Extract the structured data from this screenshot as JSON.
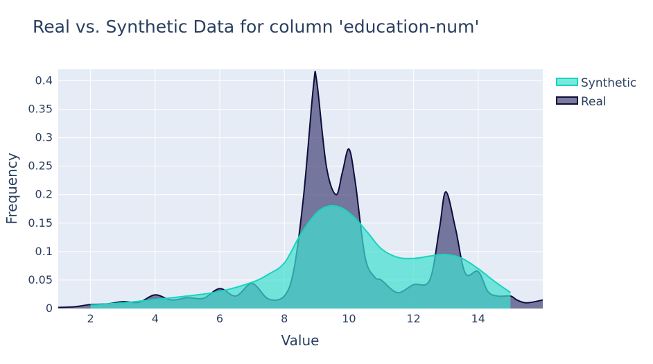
{
  "chart_data": {
    "type": "area",
    "title": "Real vs. Synthetic Data for column 'education-num'",
    "xlabel": "Value",
    "ylabel": "Frequency",
    "xlim": [
      1,
      16
    ],
    "ylim": [
      0,
      0.42
    ],
    "x_ticks": [
      2,
      4,
      6,
      8,
      10,
      12,
      14
    ],
    "y_ticks": [
      0,
      0.05,
      0.1,
      0.15,
      0.2,
      0.25,
      0.3,
      0.35,
      0.4
    ],
    "y_tick_labels": [
      "0",
      "0.05",
      "0.1",
      "0.15",
      "0.2",
      "0.25",
      "0.3",
      "0.35",
      "0.4"
    ],
    "grid": true,
    "legend_position": "top-right",
    "series": [
      {
        "name": "Real",
        "fill_color": "#4f4f7f",
        "line_color": "#0e0e3a",
        "x": [
          1,
          1.5,
          2,
          2.5,
          3,
          3.5,
          4,
          4.5,
          5,
          5.5,
          6,
          6.5,
          7,
          7.5,
          8,
          8.3,
          8.6,
          8.9,
          9,
          9.3,
          9.6,
          9.8,
          10,
          10.2,
          10.5,
          10.8,
          11,
          11.5,
          12,
          12.5,
          12.8,
          13,
          13.3,
          13.6,
          14,
          14.3,
          14.6,
          15,
          15.2,
          15.5,
          16
        ],
        "y": [
          0.002,
          0.003,
          0.007,
          0.008,
          0.012,
          0.011,
          0.024,
          0.015,
          0.019,
          0.018,
          0.035,
          0.022,
          0.044,
          0.017,
          0.022,
          0.07,
          0.2,
          0.39,
          0.4,
          0.25,
          0.2,
          0.24,
          0.28,
          0.22,
          0.09,
          0.055,
          0.05,
          0.028,
          0.042,
          0.05,
          0.14,
          0.205,
          0.14,
          0.062,
          0.065,
          0.03,
          0.022,
          0.022,
          0.015,
          0.01,
          0.015
        ]
      },
      {
        "name": "Synthetic",
        "fill_color": "#40e0d0",
        "line_color": "#19d3c0",
        "x": [
          2,
          3,
          4,
          5,
          6,
          7,
          7.5,
          8,
          8.5,
          9,
          9.4,
          9.8,
          10.2,
          10.6,
          11,
          11.5,
          12,
          12.5,
          13,
          13.5,
          14,
          14.5,
          15
        ],
        "y": [
          0.006,
          0.01,
          0.016,
          0.022,
          0.03,
          0.046,
          0.06,
          0.08,
          0.13,
          0.168,
          0.18,
          0.176,
          0.158,
          0.132,
          0.105,
          0.09,
          0.088,
          0.092,
          0.095,
          0.088,
          0.07,
          0.048,
          0.028
        ]
      }
    ]
  }
}
